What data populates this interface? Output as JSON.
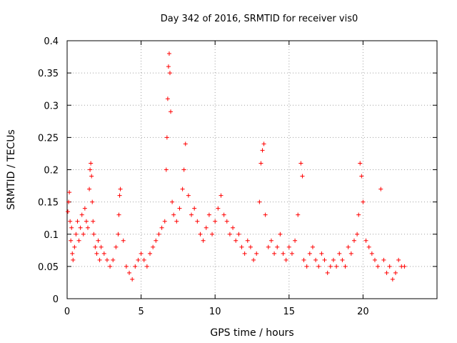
{
  "chart_data": {
    "type": "scatter",
    "title": "Day 342 of 2016, SRMTID for receiver vis0",
    "xlabel": "GPS time / hours",
    "ylabel": "SRMTID / TECUs",
    "xlim": [
      0,
      25
    ],
    "ylim": [
      0,
      0.4
    ],
    "xticks": [
      0,
      5,
      10,
      15,
      20
    ],
    "xtick_labels": [
      "0",
      "5",
      "10",
      "15",
      "20"
    ],
    "yticks": [
      0,
      0.05,
      0.1,
      0.15,
      0.2,
      0.25,
      0.3,
      0.35,
      0.4
    ],
    "ytick_labels": [
      "0",
      "0.05",
      "0.1",
      "0.15",
      "0.2",
      "0.25",
      "0.3",
      "0.35",
      "0.4"
    ],
    "grid": true,
    "marker": "+",
    "color": "#ff0000",
    "series": [
      {
        "name": "vis0",
        "x": [
          0.05,
          0.1,
          0.15,
          0.2,
          0.25,
          0.3,
          0.35,
          0.4,
          0.5,
          0.6,
          0.7,
          0.8,
          0.9,
          1.0,
          1.1,
          1.2,
          1.3,
          1.4,
          1.5,
          1.55,
          1.6,
          1.65,
          1.7,
          1.75,
          1.8,
          1.9,
          2.0,
          2.1,
          2.2,
          2.3,
          2.5,
          2.7,
          2.9,
          3.1,
          3.3,
          3.45,
          3.5,
          3.55,
          3.6,
          3.8,
          4.0,
          4.2,
          4.4,
          4.6,
          4.8,
          5.0,
          5.2,
          5.4,
          5.6,
          5.8,
          6.0,
          6.2,
          6.4,
          6.6,
          6.7,
          6.75,
          6.8,
          6.85,
          6.9,
          6.95,
          7.0,
          7.1,
          7.2,
          7.4,
          7.6,
          7.8,
          7.9,
          8.0,
          8.2,
          8.4,
          8.6,
          8.8,
          9.0,
          9.2,
          9.4,
          9.6,
          9.8,
          10.0,
          10.2,
          10.4,
          10.6,
          10.8,
          11.0,
          11.2,
          11.4,
          11.6,
          11.8,
          12.0,
          12.2,
          12.4,
          12.6,
          12.8,
          13.0,
          13.1,
          13.2,
          13.3,
          13.4,
          13.6,
          13.8,
          14.0,
          14.2,
          14.4,
          14.6,
          14.8,
          15.0,
          15.2,
          15.4,
          15.6,
          15.8,
          15.9,
          16.0,
          16.2,
          16.4,
          16.6,
          16.8,
          17.0,
          17.2,
          17.4,
          17.6,
          17.8,
          18.0,
          18.2,
          18.4,
          18.6,
          18.8,
          19.0,
          19.2,
          19.4,
          19.6,
          19.7,
          19.8,
          19.9,
          20.0,
          20.2,
          20.4,
          20.6,
          20.8,
          21.0,
          21.2,
          21.4,
          21.6,
          21.8,
          22.0,
          22.2,
          22.4,
          22.6,
          22.8
        ],
        "y": [
          0.135,
          0.15,
          0.165,
          0.12,
          0.09,
          0.11,
          0.07,
          0.06,
          0.08,
          0.1,
          0.12,
          0.09,
          0.11,
          0.13,
          0.1,
          0.14,
          0.12,
          0.11,
          0.17,
          0.2,
          0.21,
          0.19,
          0.15,
          0.12,
          0.1,
          0.08,
          0.07,
          0.09,
          0.06,
          0.08,
          0.07,
          0.06,
          0.05,
          0.06,
          0.08,
          0.1,
          0.13,
          0.16,
          0.17,
          0.09,
          0.05,
          0.04,
          0.03,
          0.05,
          0.06,
          0.07,
          0.06,
          0.05,
          0.07,
          0.08,
          0.09,
          0.1,
          0.11,
          0.12,
          0.2,
          0.25,
          0.31,
          0.36,
          0.38,
          0.35,
          0.29,
          0.15,
          0.13,
          0.12,
          0.14,
          0.17,
          0.2,
          0.24,
          0.16,
          0.13,
          0.14,
          0.12,
          0.1,
          0.09,
          0.11,
          0.13,
          0.1,
          0.12,
          0.14,
          0.16,
          0.13,
          0.12,
          0.1,
          0.11,
          0.09,
          0.1,
          0.08,
          0.07,
          0.09,
          0.08,
          0.06,
          0.07,
          0.15,
          0.21,
          0.23,
          0.24,
          0.13,
          0.08,
          0.09,
          0.07,
          0.08,
          0.1,
          0.07,
          0.06,
          0.08,
          0.07,
          0.09,
          0.13,
          0.21,
          0.19,
          0.06,
          0.05,
          0.07,
          0.08,
          0.06,
          0.05,
          0.07,
          0.06,
          0.04,
          0.05,
          0.06,
          0.05,
          0.07,
          0.06,
          0.05,
          0.08,
          0.07,
          0.09,
          0.1,
          0.13,
          0.21,
          0.19,
          0.15,
          0.09,
          0.08,
          0.07,
          0.06,
          0.05,
          0.17,
          0.06,
          0.04,
          0.05,
          0.03,
          0.04,
          0.06,
          0.05,
          0.05
        ]
      }
    ]
  }
}
